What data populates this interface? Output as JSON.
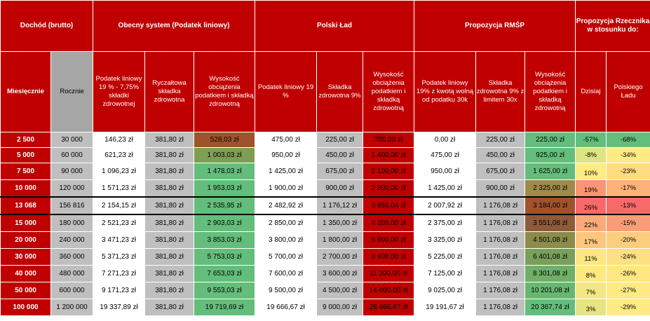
{
  "groups": {
    "dochod": "Dochód (brutto)",
    "obecny": "Obecny system (Podatek liniowy)",
    "polski_lad": "Polski Ład",
    "rmsp": "Propozycja RMŚP",
    "rzecznik": "Propozycja Rzecznika w stosunku do:"
  },
  "subheaders": {
    "miesiecznie": "Miesięcznie",
    "rocznie": "Rocznie",
    "ob_podatek": "Podatek liniowy 19 % - 7,75% składki zdrowotnej",
    "ob_ryczalt": "Ryczałtowa składka zdrowotna",
    "ob_wysokosc": "Wysokość obciążenia podatkiem i składką zdrowotną",
    "pl_podatek": "Podatek liniowy 19 %",
    "pl_skladka": "Składka zdrowotna 9%",
    "pl_wysokosc": "Wysokość obciążenia podatkiem i składką zdrowotną",
    "rm_podatek": "Podatek liniowy 19% z kwotą wolną od podatku 30k",
    "rm_skladka": "Składka zdrowotna 9% z limitem 30x",
    "rm_wysokosc": "Wysokość obciążenia podatkiem i składką zdrowotną",
    "dzisiaj": "Dzisiaj",
    "polskiego_ladu": "Polskiego Ładu"
  },
  "rows": [
    {
      "m": "2 500",
      "r": "30 000",
      "c1": "146,23 zł",
      "c2": "381,80 zł",
      "c3": "528,03 zł",
      "c3bg": "#a0522d",
      "c4": "475,00 zł",
      "c5": "225,00 zł",
      "c6": "700,00 zł",
      "c6bg": "#c00000",
      "c7": "0,00 zł",
      "c8": "225,00 zł",
      "c9": "225,00 zł",
      "c9bg": "#63be7b",
      "p1": "-57%",
      "p1bg": "#63be7b",
      "p2": "-68%",
      "p2bg": "#63be7b"
    },
    {
      "m": "5 000",
      "r": "60 000",
      "c1": "621,23 zł",
      "c2": "381,80 zł",
      "c3": "1 003,03 zł",
      "c3bg": "#7e9e55",
      "c4": "950,00 zł",
      "c5": "450,00 zł",
      "c6": "1 400,00 zł",
      "c6bg": "#c00000",
      "c7": "475,00 zł",
      "c8": "450,00 zł",
      "c9": "925,00 zł",
      "c9bg": "#63be7b",
      "p1": "-8%",
      "p1bg": "#dde483",
      "p2": "-34%",
      "p2bg": "#ffeb84"
    },
    {
      "m": "7 500",
      "r": "90 000",
      "c1": "1 096,23 zł",
      "c2": "381,80 zł",
      "c3": "1 478,03 zł",
      "c3bg": "#63be7b",
      "c4": "1 425,00 zł",
      "c5": "675,00 zł",
      "c6": "2 100,00 zł",
      "c6bg": "#c00000",
      "c7": "950,00 zł",
      "c8": "675,00 zł",
      "c9": "1 625,00 zł",
      "c9bg": "#63be7b",
      "p1": "10%",
      "p1bg": "#ffeb84",
      "p2": "-23%",
      "p2bg": "#fedc81"
    },
    {
      "m": "10 000",
      "r": "120 000",
      "c1": "1 571,23 zł",
      "c2": "381,80 zł",
      "c3": "1 953,03 zł",
      "c3bg": "#63be7b",
      "c4": "1 900,00 zł",
      "c5": "900,00 zł",
      "c6": "2 800,00 zł",
      "c6bg": "#c00000",
      "c7": "1 425,00 zł",
      "c8": "900,00 zł",
      "c9": "2 325,00 zł",
      "c9bg": "#a08a4a",
      "p1": "19%",
      "p1bg": "#fa9473",
      "p2": "-17%",
      "p2bg": "#fcb279"
    },
    {
      "m": "13 068",
      "r": "156 816",
      "c1": "2 154,15 zł",
      "c2": "381,80 zł",
      "c3": "2 535,95 zł",
      "c3bg": "#63be7b",
      "c4": "2 482,92 zł",
      "c5": "1 176,12 zł",
      "c6": "3 659,04 zł",
      "c6bg": "#c00000",
      "c7": "2 007,92 zł",
      "c8": "1 176,08 zł",
      "c9": "3 184,00 zł",
      "c9bg": "#a0522d",
      "p1": "26%",
      "p1bg": "#f8696b",
      "p2": "-13%",
      "p2bg": "#f8696b"
    },
    {
      "m": "15 000",
      "r": "180 000",
      "c1": "2 521,23 zł",
      "c2": "381,80 zł",
      "c3": "2 903,03 zł",
      "c3bg": "#63be7b",
      "c4": "2 850,00 zł",
      "c5": "1 350,00 zł",
      "c6": "4 200,00 zł",
      "c6bg": "#c00000",
      "c7": "2 375,00 zł",
      "c8": "1 176,08 zł",
      "c9": "3 551,08 zł",
      "c9bg": "#8e5a3a",
      "p1": "22%",
      "p1bg": "#fbaa77",
      "p2": "-15%",
      "p2bg": "#fa9d75"
    },
    {
      "m": "20 000",
      "r": "240 000",
      "c1": "3 471,23 zł",
      "c2": "381,80 zł",
      "c3": "3 853,03 zł",
      "c3bg": "#63be7b",
      "c4": "3 800,00 zł",
      "c5": "1 800,00 zł",
      "c6": "5 600,00 zł",
      "c6bg": "#c00000",
      "c7": "3 325,00 zł",
      "c8": "1 176,08 zł",
      "c9": "4 501,08 zł",
      "c9bg": "#8c8c4a",
      "p1": "17%",
      "p1bg": "#fdc67d",
      "p2": "-20%",
      "p2bg": "#fdcd7e"
    },
    {
      "m": "30 000",
      "r": "360 000",
      "c1": "5 371,23 zł",
      "c2": "381,80 zł",
      "c3": "5 753,03 zł",
      "c3bg": "#63be7b",
      "c4": "5 700,00 zł",
      "c5": "2 700,00 zł",
      "c6": "8 400,00 zł",
      "c6bg": "#c00000",
      "c7": "5 225,00 zł",
      "c8": "1 176,08 zł",
      "c9": "6 401,08 zł",
      "c9bg": "#79a05a",
      "p1": "11%",
      "p1bg": "#ffe583",
      "p2": "-24%",
      "p2bg": "#fedf82"
    },
    {
      "m": "40 000",
      "r": "480 000",
      "c1": "7 271,23 zł",
      "c2": "381,80 zł",
      "c3": "7 653,03 zł",
      "c3bg": "#63be7b",
      "c4": "7 600,00 zł",
      "c5": "3 600,00 zł",
      "c6": "11 200,00 zł",
      "c6bg": "#c00000",
      "c7": "7 125,00 zł",
      "c8": "1 176,08 zł",
      "c9": "8 301,08 zł",
      "c9bg": "#6fb067",
      "p1": "8%",
      "p1bg": "#fde983",
      "p2": "-26%",
      "p2bg": "#ffe884"
    },
    {
      "m": "50 000",
      "r": "600 000",
      "c1": "9 171,23 zł",
      "c2": "381,80 zł",
      "c3": "9 553,03 zł",
      "c3bg": "#63be7b",
      "c4": "9 500,00 zł",
      "c5": "4 500,00 zł",
      "c6": "14 000,00 zł",
      "c6bg": "#c00000",
      "c7": "9 025,00 zł",
      "c8": "1 176,08 zł",
      "c9": "10 201,08 zł",
      "c9bg": "#68b770",
      "p1": "7%",
      "p1bg": "#f2e784",
      "p2": "-27%",
      "p2bg": "#ffea84"
    },
    {
      "m": "100 000",
      "r": "1 200 000",
      "c1": "19 337,89 zł",
      "c2": "381,80 zł",
      "c3": "19 719,69 zł",
      "c3bg": "#63be7b",
      "c4": "19 666,67 zł",
      "c5": "9 000,00 zł",
      "c6": "28 666,67 zł",
      "c6bg": "#c00000",
      "c7": "19 191,67 zł",
      "c8": "1 176,08 zł",
      "c9": "20 367,74 zł",
      "c9bg": "#63be7b",
      "p1": "3%",
      "p1bg": "#e6e583",
      "p2": "-29%",
      "p2bg": "#ffeb84"
    }
  ]
}
